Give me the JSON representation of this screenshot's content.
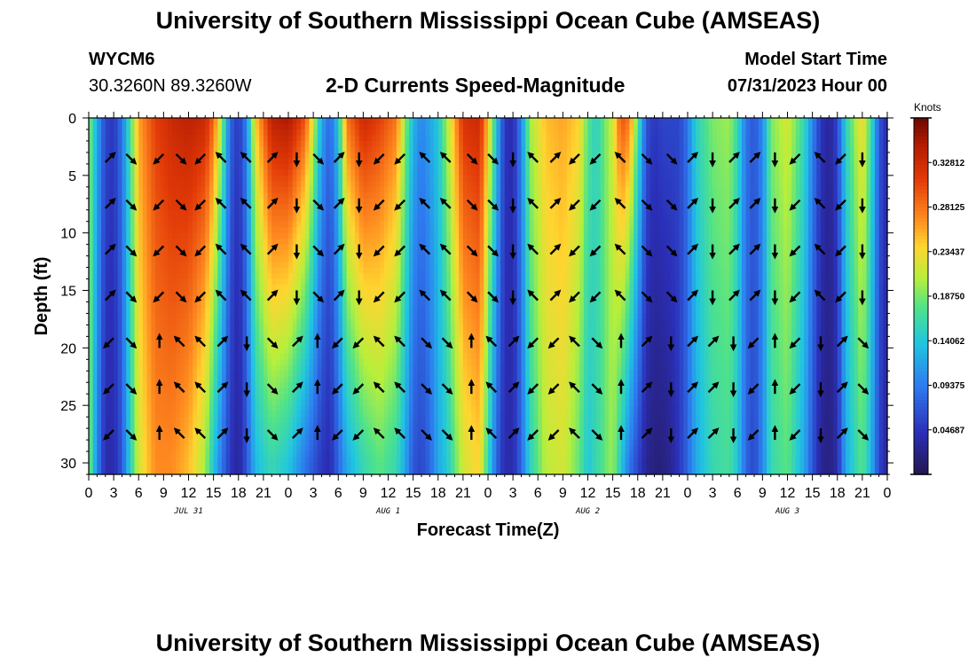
{
  "header": {
    "title": "University of Southern Mississippi Ocean Cube (AMSEAS)",
    "station": "WYCM6",
    "coords": "30.3260N  89.3260W",
    "subtitle": "2-D Currents Speed-Magnitude",
    "model_start_label": "Model Start Time",
    "model_start_value": "07/31/2023 Hour 00",
    "footer_title": "University of Southern Mississippi Ocean Cube (AMSEAS)"
  },
  "chart_data": {
    "type": "heatmap",
    "title": "2-D Currents Speed-Magnitude",
    "xlabel": "Forecast Time(Z)",
    "ylabel": "Depth (ft)",
    "xlim": [
      0,
      96
    ],
    "ylim": [
      31,
      0
    ],
    "x_tick_labels": [
      "0",
      "3",
      "6",
      "9",
      "12",
      "15",
      "18",
      "21",
      "0",
      "3",
      "6",
      "9",
      "12",
      "15",
      "18",
      "21",
      "0",
      "3",
      "6",
      "9",
      "12",
      "15",
      "18",
      "21",
      "0",
      "3",
      "6",
      "9",
      "12",
      "15",
      "18",
      "21",
      "0"
    ],
    "y_ticks": [
      0,
      5,
      10,
      15,
      20,
      25,
      30
    ],
    "date_labels": [
      {
        "label": "JUL 31",
        "hour": 12
      },
      {
        "label": "AUG 1",
        "hour": 36
      },
      {
        "label": "AUG 2",
        "hour": 60
      },
      {
        "label": "AUG 3",
        "hour": 84
      }
    ],
    "colorbar": {
      "title": "Knots",
      "ticks": [
        0.32812,
        0.28125,
        0.23437,
        0.1875,
        0.14062,
        0.09375,
        0.04687
      ],
      "tick_labels": [
        "0.32812",
        "0.28125",
        "0.23437",
        "0.18750",
        "0.14062",
        "0.09375",
        "0.04687"
      ],
      "range": [
        0,
        0.375
      ]
    },
    "vector_depths": [
      3.5,
      7.5,
      11.5,
      15.5,
      19.5,
      23.5,
      27.5
    ],
    "vector_hours": [
      2.5,
      5,
      8.5,
      11,
      13.5,
      16,
      19,
      22,
      25,
      27.5,
      30,
      32.5,
      35,
      37.5,
      40.5,
      43,
      46,
      48.5,
      51,
      53.5,
      56,
      58.5,
      61,
      64,
      67,
      70,
      72.5,
      75,
      77.5,
      80,
      82.5,
      85,
      88,
      90.5,
      93
    ],
    "speed_profile": [
      {
        "hour": 0,
        "top": 0.2,
        "bottom": 0.2
      },
      {
        "hour": 1,
        "top": 0.12,
        "bottom": 0.1
      },
      {
        "hour": 2,
        "top": 0.06,
        "bottom": 0.04
      },
      {
        "hour": 3,
        "top": 0.05,
        "bottom": 0.04
      },
      {
        "hour": 4,
        "top": 0.09,
        "bottom": 0.07
      },
      {
        "hour": 5,
        "top": 0.17,
        "bottom": 0.15
      },
      {
        "hour": 6,
        "top": 0.26,
        "bottom": 0.22
      },
      {
        "hour": 8,
        "top": 0.31,
        "bottom": 0.27
      },
      {
        "hour": 10,
        "top": 0.33,
        "bottom": 0.27
      },
      {
        "hour": 12,
        "top": 0.34,
        "bottom": 0.25
      },
      {
        "hour": 14,
        "top": 0.33,
        "bottom": 0.2
      },
      {
        "hour": 15,
        "top": 0.29,
        "bottom": 0.14
      },
      {
        "hour": 16,
        "top": 0.2,
        "bottom": 0.09
      },
      {
        "hour": 17,
        "top": 0.08,
        "bottom": 0.05
      },
      {
        "hour": 18,
        "top": 0.05,
        "bottom": 0.03
      },
      {
        "hour": 19,
        "top": 0.1,
        "bottom": 0.07
      },
      {
        "hour": 20,
        "top": 0.24,
        "bottom": 0.13
      },
      {
        "hour": 22,
        "top": 0.34,
        "bottom": 0.16
      },
      {
        "hour": 24,
        "top": 0.35,
        "bottom": 0.14
      },
      {
        "hour": 26,
        "top": 0.3,
        "bottom": 0.09
      },
      {
        "hour": 27,
        "top": 0.22,
        "bottom": 0.07
      },
      {
        "hour": 28,
        "top": 0.12,
        "bottom": 0.05
      },
      {
        "hour": 29,
        "top": 0.08,
        "bottom": 0.04
      },
      {
        "hour": 30,
        "top": 0.14,
        "bottom": 0.08
      },
      {
        "hour": 31,
        "top": 0.28,
        "bottom": 0.12
      },
      {
        "hour": 33,
        "top": 0.33,
        "bottom": 0.16
      },
      {
        "hour": 35,
        "top": 0.31,
        "bottom": 0.18
      },
      {
        "hour": 37,
        "top": 0.28,
        "bottom": 0.16
      },
      {
        "hour": 38,
        "top": 0.2,
        "bottom": 0.12
      },
      {
        "hour": 39,
        "top": 0.13,
        "bottom": 0.07
      },
      {
        "hour": 40,
        "top": 0.1,
        "bottom": 0.06
      },
      {
        "hour": 41,
        "top": 0.12,
        "bottom": 0.08
      },
      {
        "hour": 42,
        "top": 0.14,
        "bottom": 0.12
      },
      {
        "hour": 43,
        "top": 0.2,
        "bottom": 0.14
      },
      {
        "hour": 45,
        "top": 0.32,
        "bottom": 0.22
      },
      {
        "hour": 47,
        "top": 0.33,
        "bottom": 0.24
      },
      {
        "hour": 48,
        "top": 0.25,
        "bottom": 0.16
      },
      {
        "hour": 49,
        "top": 0.14,
        "bottom": 0.08
      },
      {
        "hour": 50,
        "top": 0.05,
        "bottom": 0.04
      },
      {
        "hour": 51,
        "top": 0.04,
        "bottom": 0.04
      },
      {
        "hour": 52,
        "top": 0.1,
        "bottom": 0.08
      },
      {
        "hour": 53,
        "top": 0.2,
        "bottom": 0.15
      },
      {
        "hour": 55,
        "top": 0.25,
        "bottom": 0.21
      },
      {
        "hour": 57,
        "top": 0.26,
        "bottom": 0.22
      },
      {
        "hour": 59,
        "top": 0.24,
        "bottom": 0.18
      },
      {
        "hour": 60,
        "top": 0.18,
        "bottom": 0.14
      },
      {
        "hour": 61,
        "top": 0.15,
        "bottom": 0.16
      },
      {
        "hour": 63,
        "top": 0.22,
        "bottom": 0.2
      },
      {
        "hour": 64,
        "top": 0.3,
        "bottom": 0.14
      },
      {
        "hour": 65,
        "top": 0.28,
        "bottom": 0.09
      },
      {
        "hour": 66,
        "top": 0.18,
        "bottom": 0.06
      },
      {
        "hour": 67,
        "top": 0.07,
        "bottom": 0.03
      },
      {
        "hour": 68,
        "top": 0.05,
        "bottom": 0.02
      },
      {
        "hour": 69,
        "top": 0.06,
        "bottom": 0.02
      },
      {
        "hour": 70,
        "top": 0.06,
        "bottom": 0.03
      },
      {
        "hour": 71,
        "top": 0.06,
        "bottom": 0.05
      },
      {
        "hour": 72,
        "top": 0.09,
        "bottom": 0.08
      },
      {
        "hour": 73,
        "top": 0.15,
        "bottom": 0.12
      },
      {
        "hour": 75,
        "top": 0.19,
        "bottom": 0.16
      },
      {
        "hour": 77,
        "top": 0.2,
        "bottom": 0.17
      },
      {
        "hour": 78,
        "top": 0.16,
        "bottom": 0.14
      },
      {
        "hour": 79,
        "top": 0.09,
        "bottom": 0.08
      },
      {
        "hour": 80,
        "top": 0.07,
        "bottom": 0.06
      },
      {
        "hour": 81,
        "top": 0.1,
        "bottom": 0.1
      },
      {
        "hour": 82,
        "top": 0.19,
        "bottom": 0.16
      },
      {
        "hour": 84,
        "top": 0.22,
        "bottom": 0.18
      },
      {
        "hour": 86,
        "top": 0.16,
        "bottom": 0.12
      },
      {
        "hour": 87,
        "top": 0.1,
        "bottom": 0.07
      },
      {
        "hour": 88,
        "top": 0.05,
        "bottom": 0.03
      },
      {
        "hour": 89,
        "top": 0.03,
        "bottom": 0.02
      },
      {
        "hour": 90,
        "top": 0.06,
        "bottom": 0.04
      },
      {
        "hour": 91,
        "top": 0.15,
        "bottom": 0.12
      },
      {
        "hour": 93,
        "top": 0.24,
        "bottom": 0.18
      },
      {
        "hour": 94,
        "top": 0.17,
        "bottom": 0.13
      },
      {
        "hour": 95,
        "top": 0.07,
        "bottom": 0.06
      },
      {
        "hour": 96,
        "top": 0.04,
        "bottom": 0.03
      }
    ]
  }
}
